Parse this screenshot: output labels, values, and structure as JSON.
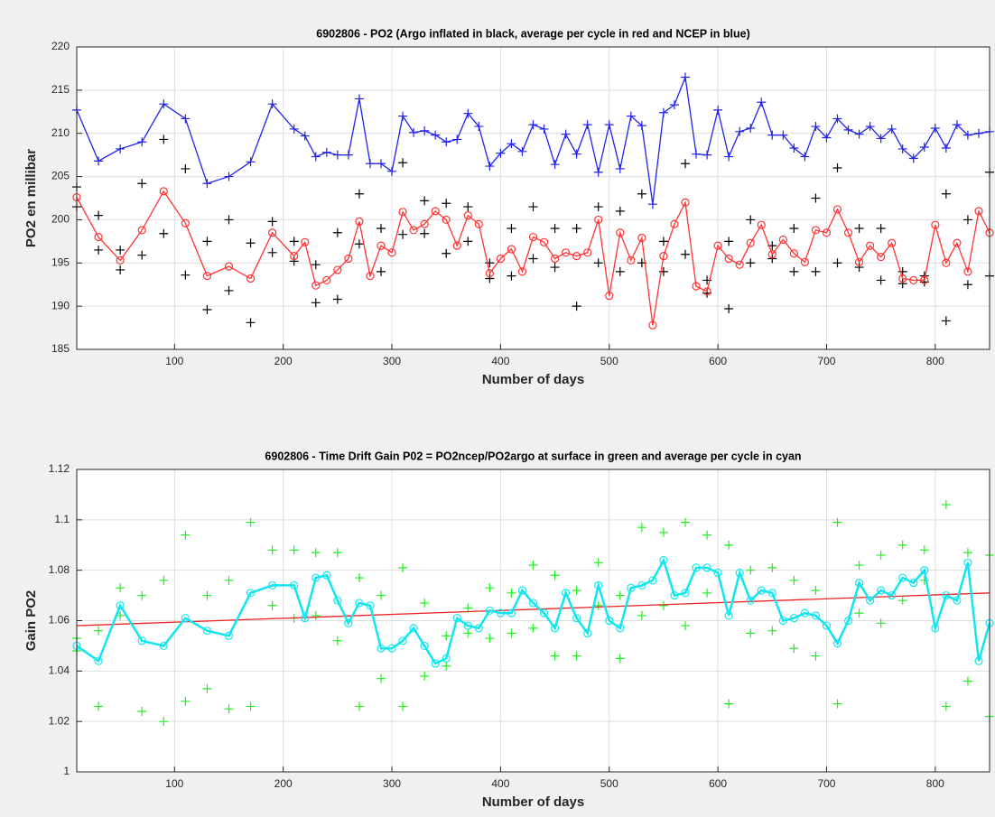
{
  "chart_data": [
    {
      "type": "line",
      "title": "6902806 - PO2 (Argo inflated in black, average per cycle in red and NCEP in blue)",
      "x_label": "Number of days",
      "y_label": "PO2 en millibar",
      "xlim": [
        10,
        850
      ],
      "ylim": [
        185,
        220
      ],
      "xticks": [
        100,
        200,
        300,
        400,
        500,
        600,
        700,
        800
      ],
      "yticks": [
        185,
        190,
        195,
        200,
        205,
        210,
        215,
        220
      ],
      "grid": true,
      "series": [
        {
          "color": "#000000",
          "line": false,
          "marker": "+",
          "x": [
            10,
            10,
            30,
            30,
            50,
            50,
            70,
            70,
            90,
            90,
            110,
            110,
            130,
            130,
            150,
            150,
            170,
            170,
            190,
            190,
            210,
            210,
            230,
            230,
            250,
            250,
            270,
            270,
            290,
            290,
            310,
            310,
            330,
            330,
            350,
            350,
            370,
            370,
            390,
            390,
            410,
            410,
            430,
            430,
            450,
            450,
            470,
            470,
            490,
            490,
            510,
            510,
            530,
            530,
            550,
            550,
            570,
            570,
            590,
            590,
            610,
            610,
            630,
            630,
            650,
            650,
            670,
            670,
            690,
            690,
            710,
            710,
            730,
            730,
            750,
            750,
            770,
            770,
            790,
            790,
            810,
            810,
            830,
            830,
            850,
            850
          ],
          "values": [
            203.8,
            201.5,
            200.5,
            196.5,
            196.5,
            194.2,
            204.2,
            195.9,
            209.3,
            198.4,
            205.9,
            193.6,
            197.5,
            189.6,
            200,
            191.8,
            197.3,
            188.1,
            199.8,
            196.2,
            197.5,
            195.2,
            194.8,
            190.4,
            198.5,
            190.8,
            203,
            197.2,
            199,
            194,
            206.6,
            198.3,
            202.2,
            198.4,
            201.9,
            196.1,
            201.5,
            197.5,
            195,
            193.2,
            199,
            193.5,
            201.5,
            195.5,
            199,
            194.5,
            199,
            190,
            201.5,
            195,
            201,
            194,
            203,
            195,
            197.5,
            194,
            206.5,
            196,
            193,
            191.5,
            197.5,
            189.7,
            200,
            195,
            197,
            195.5,
            199,
            194,
            202.5,
            194,
            206,
            195,
            199,
            194.5,
            199,
            193,
            194,
            192.6,
            193.5,
            192.8,
            203,
            188.3,
            200,
            192.5,
            205.5,
            193.5
          ]
        },
        {
          "color": "#ff3333",
          "line": true,
          "marker": "o",
          "x": [
            10,
            30,
            50,
            70,
            90,
            110,
            130,
            150,
            170,
            190,
            210,
            220,
            230,
            240,
            250,
            260,
            270,
            280,
            290,
            300,
            310,
            320,
            330,
            340,
            350,
            360,
            370,
            380,
            390,
            400,
            410,
            420,
            430,
            440,
            450,
            460,
            470,
            480,
            490,
            500,
            510,
            520,
            530,
            540,
            550,
            560,
            570,
            580,
            590,
            600,
            610,
            620,
            630,
            640,
            650,
            660,
            670,
            680,
            690,
            700,
            710,
            720,
            730,
            740,
            750,
            760,
            770,
            780,
            790,
            800,
            810,
            820,
            830,
            840,
            850
          ],
          "values": [
            202.6,
            198,
            195.3,
            198.8,
            203.3,
            199.6,
            193.5,
            194.6,
            193.2,
            198.5,
            195.8,
            197.4,
            192.4,
            193,
            194.2,
            195.5,
            199.8,
            193.5,
            197,
            196.2,
            200.9,
            198.8,
            199.5,
            201,
            200,
            197,
            200.5,
            199.5,
            193.8,
            195.5,
            196.6,
            194,
            198,
            197.4,
            195.5,
            196.2,
            195.8,
            196.2,
            200,
            191.2,
            198.5,
            195.3,
            197.9,
            187.8,
            195.8,
            199.5,
            202,
            192.3,
            191.7,
            197,
            195.5,
            194.8,
            197.3,
            199.4,
            196,
            197.7,
            196.1,
            195.1,
            198.8,
            198.5,
            201.2,
            198.5,
            195.1,
            197,
            195.7,
            197.3,
            193.2,
            193,
            193,
            199.4,
            195,
            197.3,
            194,
            201,
            198.5
          ]
        },
        {
          "color": "#2222ee",
          "line": true,
          "marker": "+",
          "x": [
            10,
            30,
            50,
            70,
            90,
            110,
            130,
            150,
            170,
            190,
            210,
            220,
            230,
            240,
            250,
            260,
            270,
            280,
            290,
            300,
            310,
            320,
            330,
            340,
            350,
            360,
            370,
            380,
            390,
            400,
            410,
            420,
            430,
            440,
            450,
            460,
            470,
            480,
            490,
            500,
            510,
            520,
            530,
            540,
            550,
            560,
            570,
            580,
            590,
            600,
            610,
            620,
            630,
            640,
            650,
            660,
            670,
            680,
            690,
            700,
            710,
            720,
            730,
            740,
            750,
            760,
            770,
            780,
            790,
            800,
            810,
            820,
            830,
            840,
            850
          ],
          "values": [
            212.7,
            206.8,
            208.2,
            209,
            213.4,
            211.7,
            204.2,
            205,
            206.7,
            213.4,
            210.5,
            209.7,
            207.3,
            207.8,
            207.5,
            207.5,
            214,
            206.5,
            206.5,
            205.6,
            212,
            210.1,
            210.3,
            209.8,
            209,
            209.3,
            212.3,
            210.8,
            206.2,
            207.7,
            208.8,
            207.9,
            211,
            210.5,
            206.4,
            209.9,
            207.6,
            211,
            205.5,
            211,
            205.9,
            212,
            210.9,
            201.8,
            212.4,
            213.3,
            216.5,
            207.6,
            207.5,
            212.7,
            207.3,
            210.2,
            210.6,
            213.6,
            209.8,
            209.8,
            208.3,
            207.3,
            210.8,
            209.5,
            211.7,
            210.4,
            209.9,
            210.8,
            209.4,
            210.5,
            208.2,
            207.1,
            208.4,
            210.6,
            208.3,
            211,
            209.8,
            210,
            210.2
          ]
        }
      ]
    },
    {
      "type": "line",
      "title": "6902806 - Time Drift Gain P02 = PO2ncep/PO2argo at surface in green and average per cycle in cyan",
      "x_label": "Number of days",
      "y_label": "Gain PO2",
      "xlim": [
        10,
        850
      ],
      "ylim": [
        1,
        1.12
      ],
      "xticks": [
        100,
        200,
        300,
        400,
        500,
        600,
        700,
        800
      ],
      "yticks": [
        1,
        1.02,
        1.04,
        1.06,
        1.08,
        1.1,
        1.12
      ],
      "grid": true,
      "series": [
        {
          "color": "#22ee22",
          "line": false,
          "marker": "+",
          "x": [
            10,
            10,
            30,
            30,
            50,
            50,
            70,
            70,
            90,
            90,
            110,
            110,
            130,
            130,
            150,
            150,
            170,
            170,
            190,
            190,
            210,
            210,
            230,
            230,
            250,
            250,
            270,
            270,
            290,
            290,
            310,
            310,
            330,
            330,
            350,
            350,
            370,
            370,
            390,
            390,
            410,
            410,
            430,
            430,
            450,
            450,
            470,
            470,
            490,
            490,
            510,
            510,
            530,
            530,
            550,
            550,
            570,
            570,
            590,
            590,
            610,
            610,
            630,
            630,
            650,
            650,
            670,
            670,
            690,
            690,
            710,
            710,
            730,
            730,
            750,
            750,
            770,
            770,
            790,
            790,
            810,
            810,
            830,
            830,
            850,
            850
          ],
          "values": [
            1.053,
            1.048,
            1.056,
            1.026,
            1.073,
            1.062,
            1.07,
            1.024,
            1.076,
            1.02,
            1.094,
            1.028,
            1.07,
            1.033,
            1.076,
            1.025,
            1.099,
            1.026,
            1.088,
            1.066,
            1.088,
            1.061,
            1.087,
            1.062,
            1.087,
            1.052,
            1.077,
            1.026,
            1.07,
            1.037,
            1.081,
            1.026,
            1.067,
            1.038,
            1.054,
            1.042,
            1.065,
            1.055,
            1.073,
            1.053,
            1.071,
            1.055,
            1.082,
            1.057,
            1.078,
            1.046,
            1.072,
            1.046,
            1.083,
            1.066,
            1.07,
            1.045,
            1.097,
            1.062,
            1.095,
            1.066,
            1.099,
            1.058,
            1.094,
            1.071,
            1.09,
            1.027,
            1.08,
            1.055,
            1.081,
            1.056,
            1.076,
            1.049,
            1.072,
            1.046,
            1.099,
            1.027,
            1.082,
            1.063,
            1.086,
            1.059,
            1.09,
            1.068,
            1.088,
            1.076,
            1.106,
            1.026,
            1.087,
            1.036,
            1.086,
            1.022
          ]
        },
        {
          "color": "#ee2222",
          "line": true,
          "marker": "none",
          "x": [
            10,
            850
          ],
          "values": [
            1.058,
            1.071
          ]
        },
        {
          "color": "#11e6f0",
          "line": true,
          "marker": "o",
          "x": [
            10,
            30,
            50,
            70,
            90,
            110,
            130,
            150,
            170,
            190,
            210,
            220,
            230,
            240,
            250,
            260,
            270,
            280,
            290,
            300,
            310,
            320,
            330,
            340,
            350,
            360,
            370,
            380,
            390,
            400,
            410,
            420,
            430,
            440,
            450,
            460,
            470,
            480,
            490,
            500,
            510,
            520,
            530,
            540,
            550,
            560,
            570,
            580,
            590,
            600,
            610,
            620,
            630,
            640,
            650,
            660,
            670,
            680,
            690,
            700,
            710,
            720,
            730,
            740,
            750,
            760,
            770,
            780,
            790,
            800,
            810,
            820,
            830,
            840,
            850
          ],
          "values": [
            1.05,
            1.044,
            1.066,
            1.052,
            1.05,
            1.061,
            1.056,
            1.054,
            1.071,
            1.074,
            1.074,
            1.061,
            1.077,
            1.078,
            1.068,
            1.059,
            1.067,
            1.066,
            1.049,
            1.049,
            1.052,
            1.057,
            1.05,
            1.043,
            1.045,
            1.061,
            1.058,
            1.057,
            1.064,
            1.063,
            1.063,
            1.072,
            1.067,
            1.063,
            1.057,
            1.071,
            1.061,
            1.055,
            1.074,
            1.06,
            1.057,
            1.073,
            1.074,
            1.076,
            1.084,
            1.07,
            1.071,
            1.081,
            1.081,
            1.079,
            1.062,
            1.079,
            1.068,
            1.072,
            1.071,
            1.06,
            1.061,
            1.063,
            1.062,
            1.058,
            1.051,
            1.06,
            1.075,
            1.068,
            1.072,
            1.07,
            1.077,
            1.075,
            1.08,
            1.057,
            1.07,
            1.068,
            1.083,
            1.044,
            1.059
          ]
        }
      ]
    }
  ]
}
